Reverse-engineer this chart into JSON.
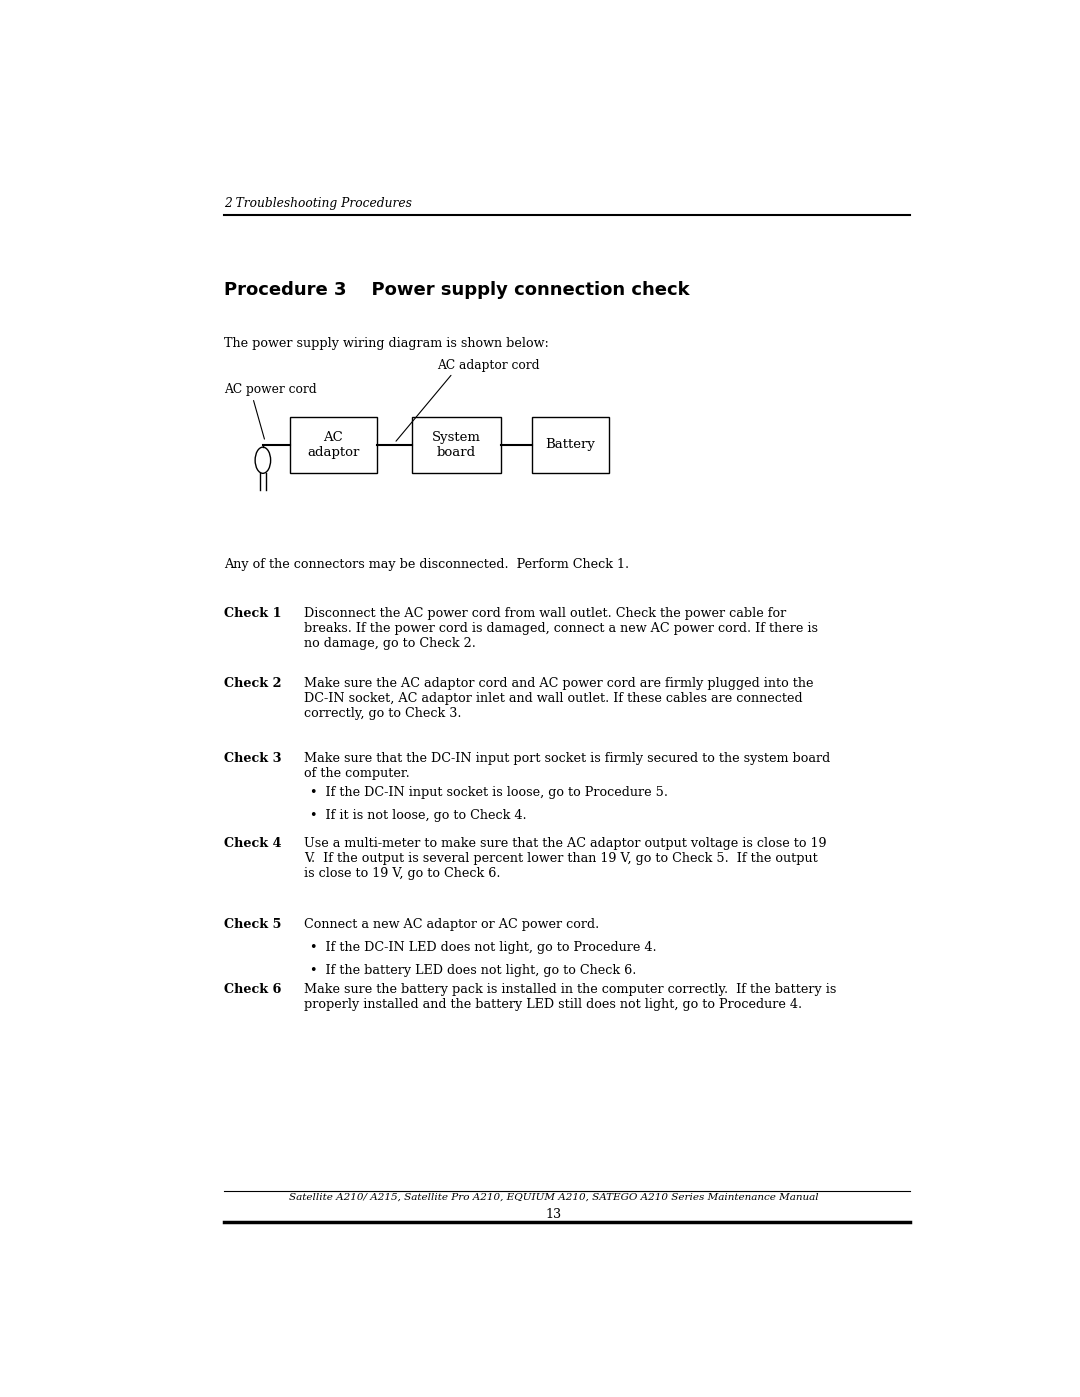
{
  "page_title": "2 Troubleshooting Procedures",
  "section_title": "Procedure 3    Power supply connection check",
  "intro_text": "The power supply wiring diagram is shown below:",
  "diagram_labels": {
    "ac_power_cord": "AC power cord",
    "ac_adaptor_cord": "AC adaptor cord",
    "ac_adaptor": "AC\nadaptor",
    "system_board": "System\nboard",
    "battery": "Battery"
  },
  "connector_text": "Any of the connectors may be disconnected.  Perform Check 1.",
  "checks": [
    {
      "label": "Check 1",
      "text": "Disconnect the AC power cord from wall outlet. Check the power cable for\nbreaks. If the power cord is damaged, connect a new AC power cord. If there is\nno damage, go to Check 2."
    },
    {
      "label": "Check 2",
      "text": "Make sure the AC adaptor cord and AC power cord are firmly plugged into the\nDC-IN socket, AC adaptor inlet and wall outlet. If these cables are connected\ncorrectly, go to Check 3."
    },
    {
      "label": "Check 3",
      "text": "Make sure that the DC-IN input port socket is firmly secured to the system board\nof the computer.",
      "bullets": [
        "If the DC-IN input socket is loose, go to Procedure 5.",
        "If it is not loose, go to Check 4."
      ]
    },
    {
      "label": "Check 4",
      "text": "Use a multi-meter to make sure that the AC adaptor output voltage is close to 19\nV.  If the output is several percent lower than 19 V, go to Check 5.  If the output\nis close to 19 V, go to Check 6."
    },
    {
      "label": "Check 5",
      "text": "Connect a new AC adaptor or AC power cord.",
      "bullets": [
        "If the DC-IN LED does not light, go to Procedure 4.",
        "If the battery LED does not light, go to Check 6."
      ]
    },
    {
      "label": "Check 6",
      "text": "Make sure the battery pack is installed in the computer correctly.  If the battery is\nproperly installed and the battery LED still does not light, go to Procedure 4."
    }
  ],
  "footer_text": "Satellite A210/ A215, Satellite Pro A210, EQUIUM A210, SATEGO A210 Series Maintenance Manual",
  "footer_page": "13",
  "bg_color": "#ffffff",
  "text_color": "#000000"
}
